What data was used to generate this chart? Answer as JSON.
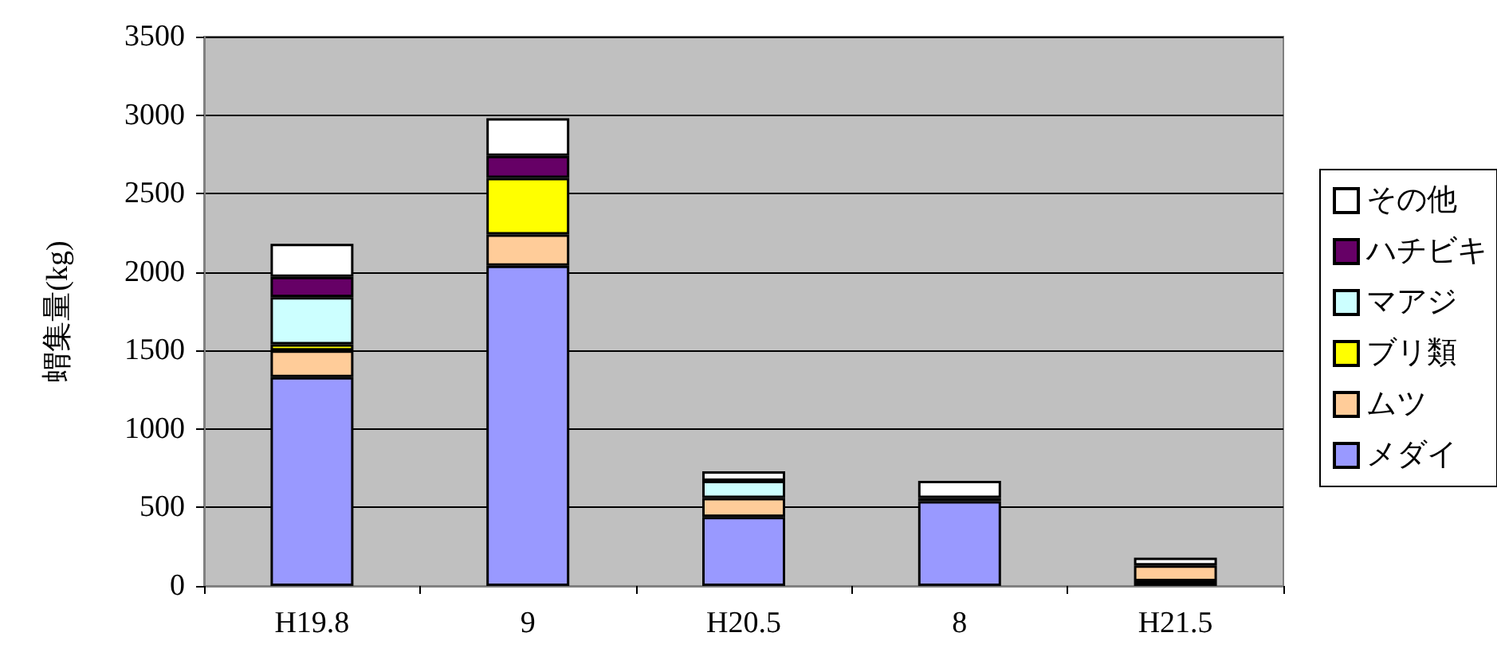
{
  "chart_data": {
    "type": "bar",
    "stacked": true,
    "ylabel": "蝟集量(kg)",
    "categories": [
      "H19.8",
      "9",
      "H20.5",
      "8",
      "H21.5"
    ],
    "series": [
      {
        "name": "メダイ",
        "color": "#9999ff",
        "values": [
          1330,
          2040,
          440,
          540,
          30
        ]
      },
      {
        "name": "ムツ",
        "color": "#ffcc99",
        "values": [
          170,
          200,
          120,
          null,
          100
        ]
      },
      {
        "name": "ブリ類",
        "color": "#ffff00",
        "values": [
          40,
          360,
          null,
          null,
          null
        ]
      },
      {
        "name": "マアジ",
        "color": "#ccffff",
        "values": [
          300,
          null,
          110,
          null,
          null
        ]
      },
      {
        "name": "ハチビキ",
        "color": "#660066",
        "values": [
          130,
          140,
          null,
          20,
          null
        ]
      },
      {
        "name": "その他",
        "color": "#ffffff",
        "values": [
          210,
          240,
          60,
          110,
          50
        ]
      }
    ],
    "ylim": [
      0,
      3500
    ],
    "yticks": [
      0,
      500,
      1000,
      1500,
      2000,
      2500,
      3000,
      3500
    ],
    "grid": "y",
    "legend": "right"
  }
}
